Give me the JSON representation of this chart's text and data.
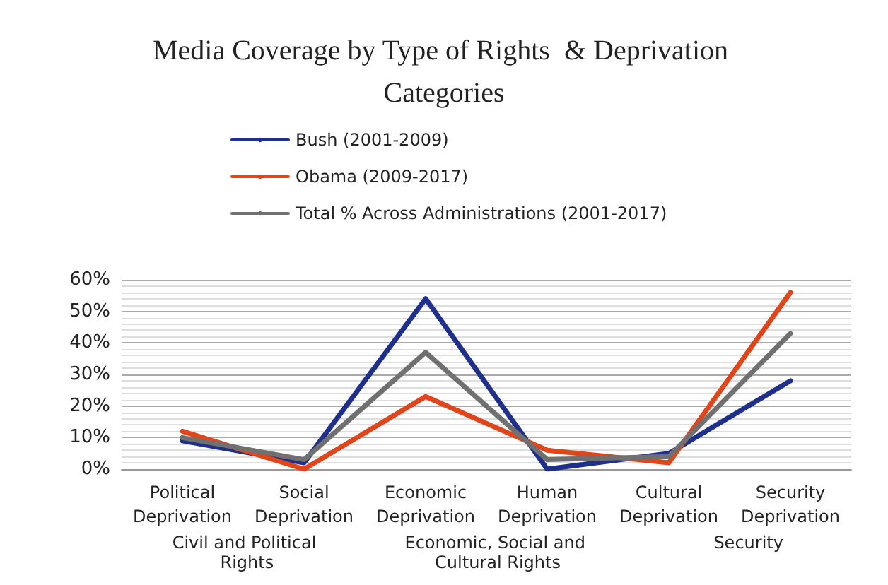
{
  "chart_data": {
    "type": "line",
    "title": "Media Coverage by Type of Rights  & Deprivation Categories",
    "categories": [
      "Political Deprivation",
      "Social Deprivation",
      "Economic Deprivation",
      "Human Deprivation",
      "Cultural Deprivation",
      "Security Deprivation"
    ],
    "series": [
      {
        "name": "Bush (2001-2009)",
        "color": "#1f2f8c",
        "values": [
          9,
          2,
          54,
          0,
          5,
          28
        ]
      },
      {
        "name": "Obama (2009-2017)",
        "color": "#e0461a",
        "values": [
          12,
          0,
          23,
          6,
          2,
          56
        ]
      },
      {
        "name": "Total % Across Administrations (2001-2017)",
        "color": "#707070",
        "values": [
          10,
          3,
          37,
          3,
          4,
          43
        ]
      }
    ],
    "ylim": [
      0,
      60
    ],
    "yticks": [
      {
        "value": 0,
        "label": "0%"
      },
      {
        "value": 10,
        "label": "10%"
      },
      {
        "value": 20,
        "label": "20%"
      },
      {
        "value": 30,
        "label": "30%"
      },
      {
        "value": 40,
        "label": "40%"
      },
      {
        "value": 50,
        "label": "50%"
      },
      {
        "value": 60,
        "label": "60%"
      }
    ],
    "grid": "y",
    "legend": "top",
    "marker": "none",
    "line_style": "solid",
    "annotations": [
      "Civil and Political Rights",
      "Economic, Social and Cultural Rights",
      "Security"
    ]
  }
}
